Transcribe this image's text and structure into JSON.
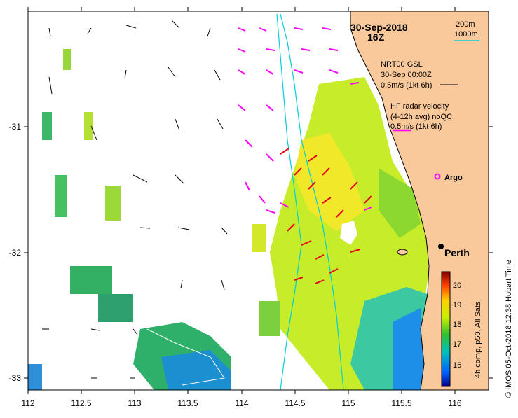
{
  "map": {
    "date": "30-Sep-2018",
    "time": "16Z",
    "depth_legend": [
      "200m",
      "1000m"
    ],
    "x_ticks": [
      "112",
      "112.5",
      "113",
      "113.5",
      "114",
      "114.5",
      "115",
      "115.5",
      "116"
    ],
    "y_ticks": [
      "-31",
      "-32",
      "-33"
    ],
    "nrt_title": "NRT00 GSL",
    "nrt_time": "30-Sep 00:00Z",
    "nrt_scale": "0.5m/s (1kt 6h)",
    "hf_title": "HF radar velocity",
    "hf_sub": "(4-12h avg) noQC",
    "hf_scale": "0.5m/s (1kt 6h)",
    "argo_label": "Argo",
    "city": "Perth",
    "colorbar_ticks": [
      "20",
      "19",
      "18",
      "17",
      "16"
    ],
    "colorbar_label": "4h comp, p50, All Sats",
    "credit": "© IMOS 05-Oct-2018 12:38 Hobart Time",
    "colors": {
      "land": "#f9c99b",
      "radar_arrow": "#ff00ff",
      "hf_arrow": "#e8001a",
      "isobath": "#00d0d8"
    }
  }
}
